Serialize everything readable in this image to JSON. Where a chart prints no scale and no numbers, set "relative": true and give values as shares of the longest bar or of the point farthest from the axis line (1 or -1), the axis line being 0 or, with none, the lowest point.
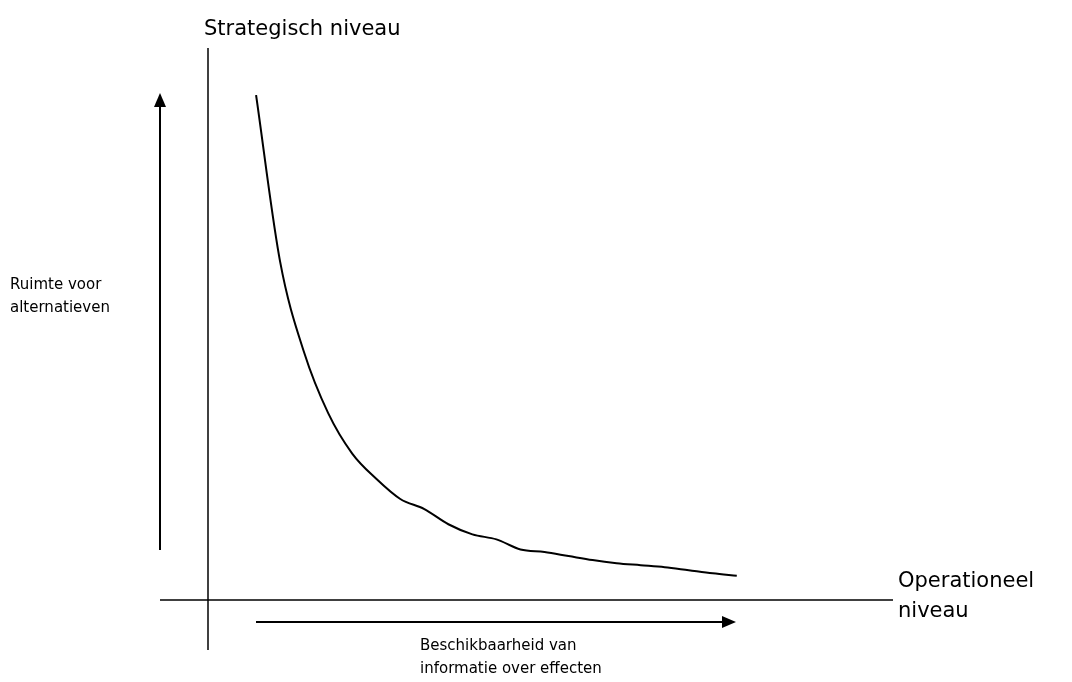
{
  "chart_data": {
    "type": "line",
    "relative": true,
    "xlabel": "Operationeel niveau",
    "ylabel": "Strategisch niveau",
    "categories": [
      null,
      null,
      null,
      null,
      null,
      null,
      null,
      null,
      null,
      null,
      null,
      null,
      null,
      null,
      null,
      null,
      null,
      null,
      null,
      null,
      null,
      null,
      null,
      null,
      null,
      null,
      null,
      null,
      null
    ],
    "values": [
      null,
      null,
      1,
      0.67,
      0.49,
      0.37,
      0.29,
      0.24,
      0.2,
      0.18,
      0.15,
      0.13,
      0.12,
      0.1,
      0.095,
      0.087,
      0.079,
      0.073,
      0.069,
      0.065,
      0.059,
      0.053,
      0.048,
      null,
      null,
      null,
      null,
      null,
      null
    ],
    "color": "#000000",
    "marker": "none",
    "line_style": "solid",
    "annotations": [
      "Ruimte voor alternatieven",
      "Beschikbaarheid van informatie over effecten"
    ]
  }
}
